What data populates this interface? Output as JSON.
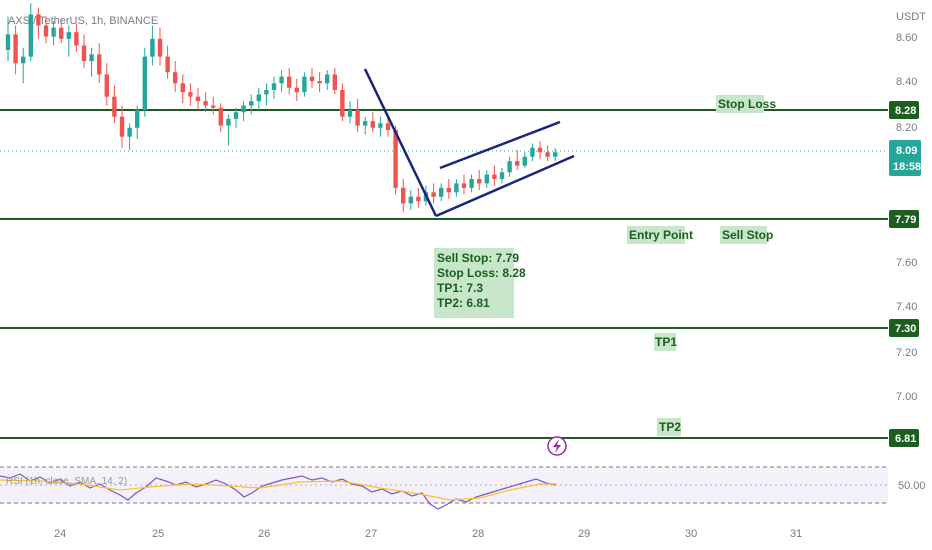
{
  "header": {
    "symbol": "AXS / TetherUS, 1h, BINANCE"
  },
  "chart_data": {
    "type": "candlestick",
    "currency_label": "USDT",
    "y_ticks": [
      "8.60",
      "8.40",
      "8.20",
      "7.60",
      "7.40",
      "7.20",
      "7.00"
    ],
    "x_ticks": [
      "24",
      "25",
      "26",
      "27",
      "28",
      "29",
      "30",
      "31"
    ],
    "current_price": {
      "value": "8.09",
      "countdown": "18:58"
    },
    "levels": [
      {
        "name": "stop-loss",
        "value": "8.28"
      },
      {
        "name": "entry",
        "value": "7.79"
      },
      {
        "name": "tp1",
        "value": "7.30"
      },
      {
        "name": "tp2",
        "value": "6.81"
      }
    ],
    "annotations": {
      "stop_loss": "Stop Loss",
      "entry_point": "Entry Point",
      "sell_stop": "Sell Stop",
      "tp1": "TP1",
      "tp2": "TP2",
      "summary": [
        "Sell Stop: 7.79",
        "Stop Loss: 8.28",
        "TP1: 7.3",
        "TP2: 6.81"
      ]
    },
    "rsi": {
      "label": "RSI (1h, close, SMA, 14, 2)",
      "level": "50.00"
    },
    "candles": [
      [
        8.55,
        8.7,
        8.5,
        8.62
      ],
      [
        8.62,
        8.66,
        8.44,
        8.49
      ],
      [
        8.49,
        8.56,
        8.4,
        8.52
      ],
      [
        8.52,
        8.76,
        8.5,
        8.71
      ],
      [
        8.71,
        8.74,
        8.6,
        8.66
      ],
      [
        8.66,
        8.7,
        8.58,
        8.61
      ],
      [
        8.61,
        8.68,
        8.57,
        8.65
      ],
      [
        8.65,
        8.69,
        8.58,
        8.6
      ],
      [
        8.6,
        8.66,
        8.52,
        8.63
      ],
      [
        8.63,
        8.67,
        8.54,
        8.57
      ],
      [
        8.57,
        8.62,
        8.47,
        8.5
      ],
      [
        8.5,
        8.56,
        8.43,
        8.53
      ],
      [
        8.53,
        8.58,
        8.4,
        8.44
      ],
      [
        8.44,
        8.49,
        8.3,
        8.34
      ],
      [
        8.34,
        8.39,
        8.22,
        8.25
      ],
      [
        8.25,
        8.3,
        8.11,
        8.16
      ],
      [
        8.16,
        8.22,
        8.1,
        8.2
      ],
      [
        8.2,
        8.3,
        8.15,
        8.28
      ],
      [
        8.28,
        8.56,
        8.25,
        8.52
      ],
      [
        8.52,
        8.66,
        8.48,
        8.6
      ],
      [
        8.6,
        8.65,
        8.48,
        8.52
      ],
      [
        8.52,
        8.57,
        8.42,
        8.45
      ],
      [
        8.45,
        8.5,
        8.36,
        8.4
      ],
      [
        8.4,
        8.44,
        8.31,
        8.36
      ],
      [
        8.36,
        8.4,
        8.3,
        8.34
      ],
      [
        8.34,
        8.38,
        8.28,
        8.32
      ],
      [
        8.32,
        8.36,
        8.27,
        8.3
      ],
      [
        8.3,
        8.34,
        8.26,
        8.29
      ],
      [
        8.29,
        8.31,
        8.18,
        8.21
      ],
      [
        8.21,
        8.26,
        8.12,
        8.24
      ],
      [
        8.24,
        8.29,
        8.2,
        8.27
      ],
      [
        8.27,
        8.32,
        8.23,
        8.3
      ],
      [
        8.3,
        8.35,
        8.26,
        8.32
      ],
      [
        8.32,
        8.38,
        8.28,
        8.35
      ],
      [
        8.35,
        8.4,
        8.3,
        8.37
      ],
      [
        8.37,
        8.43,
        8.33,
        8.4
      ],
      [
        8.4,
        8.46,
        8.36,
        8.43
      ],
      [
        8.43,
        8.47,
        8.35,
        8.38
      ],
      [
        8.38,
        8.42,
        8.32,
        8.36
      ],
      [
        8.36,
        8.45,
        8.34,
        8.43
      ],
      [
        8.43,
        8.47,
        8.38,
        8.41
      ],
      [
        8.41,
        8.45,
        8.36,
        8.4
      ],
      [
        8.4,
        8.46,
        8.37,
        8.44
      ],
      [
        8.44,
        8.47,
        8.35,
        8.37
      ],
      [
        8.37,
        8.4,
        8.23,
        8.25
      ],
      [
        8.25,
        8.32,
        8.22,
        8.28
      ],
      [
        8.28,
        8.33,
        8.18,
        8.21
      ],
      [
        8.21,
        8.25,
        8.17,
        8.23
      ],
      [
        8.23,
        8.27,
        8.18,
        8.2
      ],
      [
        8.2,
        8.25,
        8.16,
        8.22
      ],
      [
        8.22,
        8.26,
        8.16,
        8.19
      ],
      [
        8.19,
        8.21,
        7.9,
        7.93
      ],
      [
        7.93,
        7.97,
        7.82,
        7.86
      ],
      [
        7.86,
        7.92,
        7.83,
        7.89
      ],
      [
        7.89,
        7.93,
        7.84,
        7.87
      ],
      [
        7.87,
        7.94,
        7.85,
        7.91
      ],
      [
        7.91,
        7.95,
        7.86,
        7.89
      ],
      [
        7.89,
        7.95,
        7.87,
        7.93
      ],
      [
        7.93,
        7.97,
        7.88,
        7.91
      ],
      [
        7.91,
        7.97,
        7.89,
        7.95
      ],
      [
        7.95,
        7.99,
        7.9,
        7.93
      ],
      [
        7.93,
        7.99,
        7.91,
        7.97
      ],
      [
        7.97,
        8.01,
        7.92,
        7.95
      ],
      [
        7.95,
        8.01,
        7.93,
        7.99
      ],
      [
        7.99,
        8.03,
        7.94,
        7.97
      ],
      [
        7.97,
        8.02,
        7.95,
        8.0
      ],
      [
        8.0,
        8.07,
        7.98,
        8.05
      ],
      [
        8.05,
        8.1,
        8.01,
        8.03
      ],
      [
        8.03,
        8.09,
        8.02,
        8.07
      ],
      [
        8.07,
        8.13,
        8.05,
        8.11
      ],
      [
        8.11,
        8.14,
        8.06,
        8.09
      ],
      [
        8.09,
        8.12,
        8.05,
        8.07
      ],
      [
        8.07,
        8.11,
        8.05,
        8.09
      ]
    ]
  }
}
